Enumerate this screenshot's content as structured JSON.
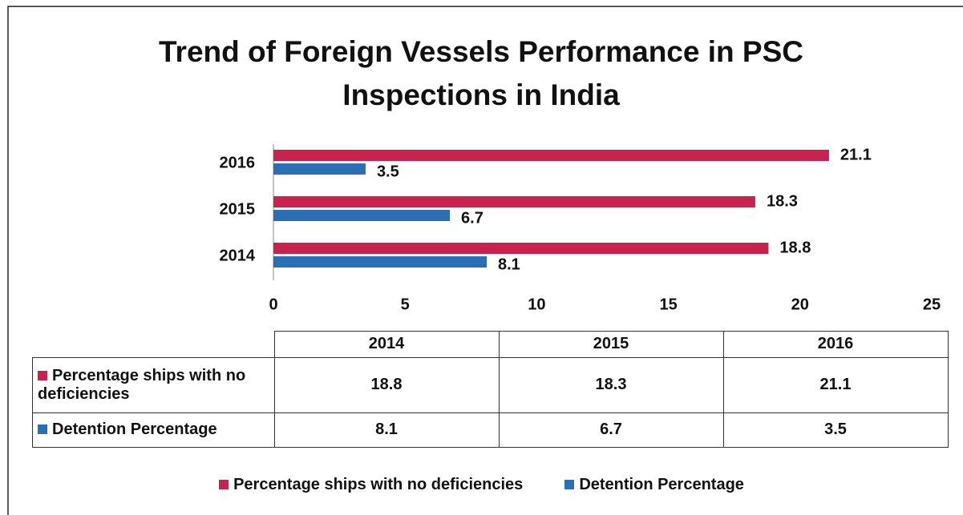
{
  "chart_data": {
    "type": "bar",
    "orientation": "horizontal",
    "title": "Trend of Foreign Vessels Performance in PSC Inspections in India",
    "categories": [
      "2014",
      "2015",
      "2016"
    ],
    "series": [
      {
        "name": "Percentage ships with no deficiencies",
        "color": "#c8224d",
        "values": [
          18.8,
          18.3,
          21.1
        ]
      },
      {
        "name": "Detention Percentage",
        "color": "#2a6fb3",
        "values": [
          8.1,
          6.7,
          3.5
        ]
      }
    ],
    "xlim": [
      0,
      25
    ],
    "xticks": [
      0,
      5,
      10,
      15,
      20,
      25
    ],
    "data_table": true,
    "legend": "bottom"
  }
}
